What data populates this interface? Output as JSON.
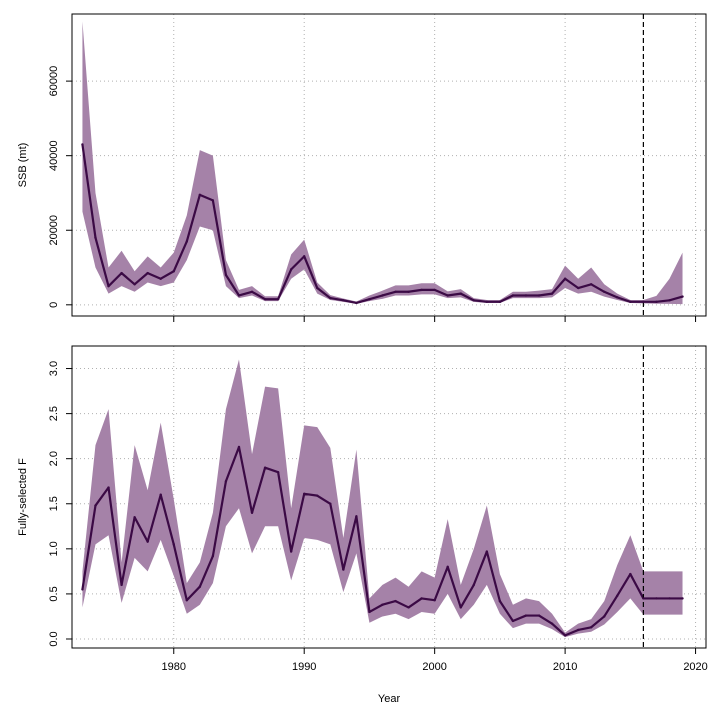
{
  "chart_data": [
    {
      "type": "line",
      "ylabel": "SSB (mt)",
      "xlim": [
        1972.2,
        2020.8
      ],
      "ylim": [
        -3000,
        78000
      ],
      "yticks": [
        0,
        20000,
        40000,
        60000
      ],
      "ytick_labels": [
        "0",
        "20000",
        "40000",
        "60000"
      ],
      "grid": true,
      "projection_start": 2016,
      "colors": {
        "line": "#3b0a45",
        "band": "#a582a8"
      },
      "x": [
        1973,
        1974,
        1975,
        1976,
        1977,
        1978,
        1979,
        1980,
        1981,
        1982,
        1983,
        1984,
        1985,
        1986,
        1987,
        1988,
        1989,
        1990,
        1991,
        1992,
        1993,
        1994,
        1995,
        1996,
        1997,
        1998,
        1999,
        2000,
        2001,
        2002,
        2003,
        2004,
        2005,
        2006,
        2007,
        2008,
        2009,
        2010,
        2011,
        2012,
        2013,
        2014,
        2015,
        2016,
        2017,
        2018,
        2019
      ],
      "values": [
        43000,
        18000,
        5000,
        8500,
        5500,
        8500,
        7000,
        9000,
        17000,
        29500,
        28000,
        8000,
        2500,
        3500,
        1500,
        1500,
        9500,
        13000,
        4500,
        1800,
        1200,
        500,
        1500,
        2500,
        3500,
        3500,
        4000,
        4000,
        2500,
        3000,
        1200,
        800,
        800,
        2500,
        2500,
        2500,
        3000,
        7000,
        4500,
        5500,
        3500,
        2000,
        800,
        800,
        800,
        1200,
        2200
      ],
      "lower": [
        25000,
        10000,
        3000,
        5000,
        3500,
        6000,
        5000,
        6000,
        12000,
        21000,
        20000,
        5000,
        1800,
        2500,
        1000,
        1000,
        7000,
        9500,
        3000,
        1300,
        800,
        300,
        1000,
        1600,
        2500,
        2500,
        2800,
        2800,
        1800,
        2000,
        800,
        500,
        500,
        1800,
        1800,
        1800,
        2000,
        4500,
        3000,
        3500,
        2200,
        1300,
        500,
        400,
        300,
        250,
        200
      ],
      "upper": [
        76000,
        30000,
        10000,
        14500,
        9000,
        13000,
        10000,
        14000,
        24000,
        41500,
        40000,
        12000,
        4000,
        5000,
        2300,
        2300,
        13500,
        17500,
        6000,
        2600,
        1700,
        900,
        2500,
        3800,
        5200,
        5200,
        5800,
        5800,
        3600,
        4200,
        1800,
        1300,
        1300,
        3500,
        3500,
        3800,
        4200,
        10500,
        7000,
        10000,
        5500,
        3000,
        1300,
        1300,
        2400,
        7000,
        14000
      ]
    },
    {
      "type": "line",
      "ylabel": "Fully-selected F",
      "xlabel": "Year",
      "xlim": [
        1972.2,
        2020.8
      ],
      "ylim": [
        -0.1,
        3.25
      ],
      "xticks": [
        1980,
        1990,
        2000,
        2010,
        2020
      ],
      "xtick_labels": [
        "1980",
        "1990",
        "2000",
        "2010",
        "2020"
      ],
      "yticks": [
        0,
        0.5,
        1.0,
        1.5,
        2.0,
        2.5,
        3.0
      ],
      "ytick_labels": [
        "0.0",
        "0.5",
        "1.0",
        "1.5",
        "2.0",
        "2.5",
        "3.0"
      ],
      "grid": true,
      "projection_start": 2016,
      "colors": {
        "line": "#3b0a45",
        "band": "#a582a8"
      },
      "x": [
        1973,
        1974,
        1975,
        1976,
        1977,
        1978,
        1979,
        1980,
        1981,
        1982,
        1983,
        1984,
        1985,
        1986,
        1987,
        1988,
        1989,
        1990,
        1991,
        1992,
        1993,
        1994,
        1995,
        1996,
        1997,
        1998,
        1999,
        2000,
        2001,
        2002,
        2003,
        2004,
        2005,
        2006,
        2007,
        2008,
        2009,
        2010,
        2011,
        2012,
        2013,
        2014,
        2015,
        2016,
        2017,
        2018,
        2019
      ],
      "values": [
        0.55,
        1.48,
        1.68,
        0.6,
        1.35,
        1.08,
        1.6,
        1.05,
        0.43,
        0.58,
        0.92,
        1.75,
        2.13,
        1.4,
        1.9,
        1.85,
        0.97,
        1.61,
        1.59,
        1.5,
        0.77,
        1.36,
        0.3,
        0.38,
        0.42,
        0.35,
        0.45,
        0.43,
        0.8,
        0.35,
        0.6,
        0.97,
        0.42,
        0.2,
        0.26,
        0.26,
        0.17,
        0.04,
        0.1,
        0.13,
        0.25,
        0.48,
        0.72,
        0.45,
        0.45,
        0.45,
        0.45
      ],
      "lower": [
        0.35,
        1.05,
        1.15,
        0.4,
        0.9,
        0.75,
        1.1,
        0.7,
        0.28,
        0.38,
        0.62,
        1.25,
        1.45,
        0.95,
        1.25,
        1.25,
        0.65,
        1.12,
        1.1,
        1.05,
        0.52,
        0.95,
        0.18,
        0.25,
        0.28,
        0.22,
        0.3,
        0.28,
        0.5,
        0.22,
        0.38,
        0.6,
        0.28,
        0.12,
        0.17,
        0.17,
        0.11,
        0.02,
        0.06,
        0.08,
        0.16,
        0.3,
        0.45,
        0.27,
        0.27,
        0.27,
        0.27
      ],
      "upper": [
        0.75,
        2.15,
        2.55,
        0.85,
        2.15,
        1.65,
        2.4,
        1.55,
        0.62,
        0.85,
        1.4,
        2.55,
        3.1,
        2.05,
        2.8,
        2.78,
        1.45,
        2.37,
        2.35,
        2.12,
        1.12,
        2.1,
        0.45,
        0.6,
        0.68,
        0.58,
        0.75,
        0.68,
        1.33,
        0.6,
        1.0,
        1.48,
        0.72,
        0.38,
        0.45,
        0.42,
        0.28,
        0.07,
        0.17,
        0.22,
        0.42,
        0.82,
        1.15,
        0.75,
        0.75,
        0.75,
        0.75
      ]
    }
  ]
}
